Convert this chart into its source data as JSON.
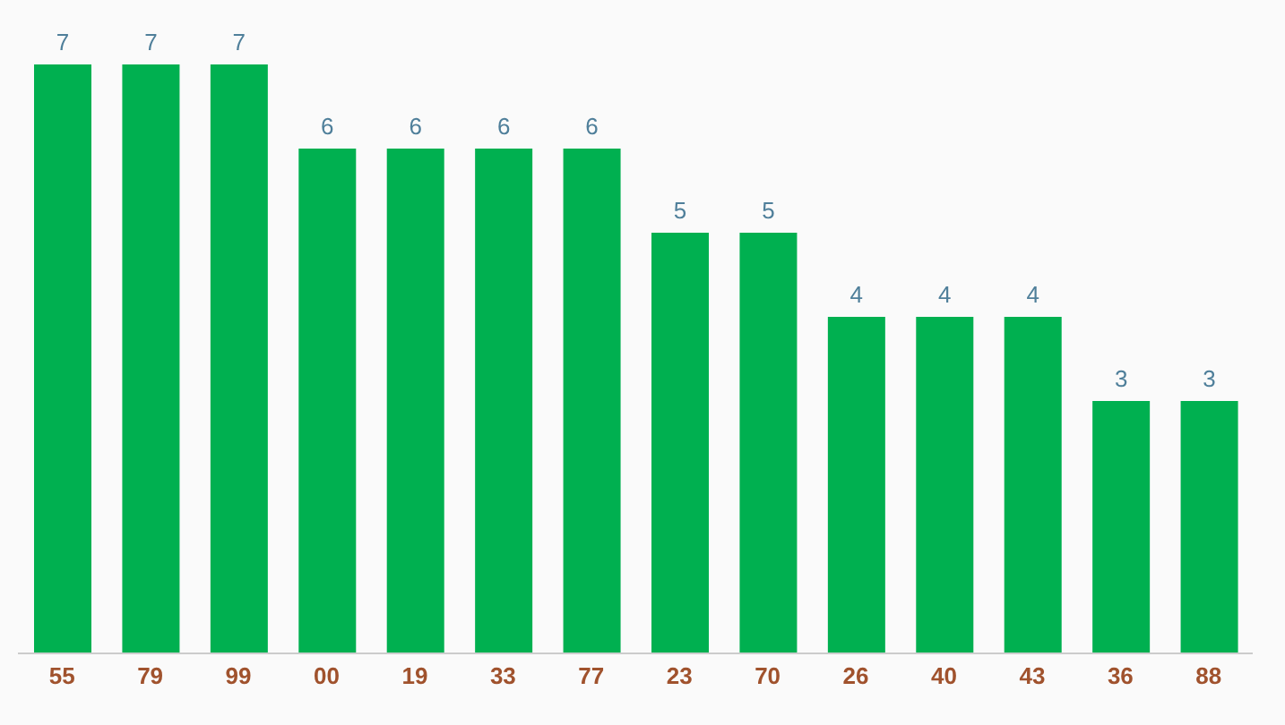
{
  "chart_data": {
    "type": "bar",
    "categories": [
      "55",
      "79",
      "99",
      "00",
      "19",
      "33",
      "77",
      "23",
      "70",
      "26",
      "40",
      "43",
      "36",
      "88"
    ],
    "values": [
      7,
      7,
      7,
      6,
      6,
      6,
      6,
      5,
      5,
      4,
      4,
      4,
      3,
      3
    ],
    "color": "#00b050",
    "data_labels": true,
    "grid": false,
    "legend": false,
    "tick_labels": "x"
  }
}
